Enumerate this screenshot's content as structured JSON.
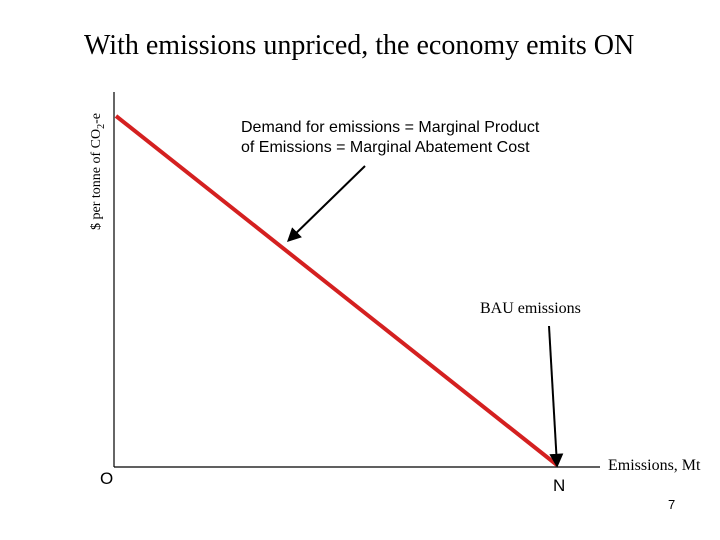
{
  "title": "With emissions unpriced, the economy emits ON",
  "y_axis_label": {
    "main": "$ per tonne of CO",
    "sub": "2",
    "suffix": "-e"
  },
  "x_axis_label": "Emissions, Mt",
  "origin_label": "O",
  "n_label": "N",
  "demand_annotation": {
    "line1": "Demand for emissions = Marginal Product",
    "line2": "of Emissions = Marginal Abatement Cost"
  },
  "bau_label": "BAU emissions",
  "page_number": "7",
  "colors": {
    "demand_line": "#d42020",
    "axis": "#000000",
    "arrow": "#000000"
  }
}
